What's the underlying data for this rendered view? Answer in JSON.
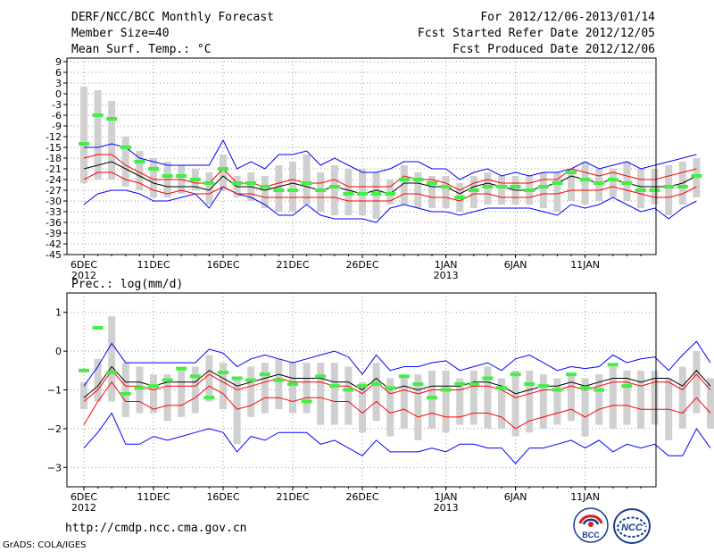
{
  "header": {
    "title": "DERF/NCC/BCC Monthly Forecast",
    "member_size": "Member Size=40",
    "variable_1": "Mean Surf. Temp.: °C",
    "period": "For 2012/12/06-2013/01/14",
    "started": "Fcst Started Refer Date 2012/12/05",
    "produced": "Fcst Produced Date 2012/12/06"
  },
  "footer": {
    "url": "http://cmdp.ncc.cma.gov.cn",
    "grads": "GrADS: COLA/IGES",
    "logo_left_text": "BCC",
    "logo_right_text": "NCC"
  },
  "chart_data": [
    {
      "type": "line",
      "title": "Mean Surf. Temp.: °C",
      "ylim": [
        -45,
        10
      ],
      "yticks": [
        9,
        6,
        3,
        0,
        -3,
        -6,
        -9,
        -12,
        -15,
        -18,
        -21,
        -24,
        -27,
        -30,
        -33,
        -36,
        -39,
        -42,
        -45
      ],
      "xticks": [
        {
          "day": 0,
          "label": "6DEC",
          "sub": "2012"
        },
        {
          "day": 5,
          "label": "11DEC",
          "sub": ""
        },
        {
          "day": 10,
          "label": "16DEC",
          "sub": ""
        },
        {
          "day": 15,
          "label": "21DEC",
          "sub": ""
        },
        {
          "day": 20,
          "label": "26DEC",
          "sub": ""
        },
        {
          "day": 26,
          "label": "1JAN",
          "sub": "2013"
        },
        {
          "day": 31,
          "label": "6JAN",
          "sub": ""
        },
        {
          "day": 36,
          "label": "11JAN",
          "sub": ""
        }
      ],
      "series": [
        {
          "name": "max",
          "color": "#0000ff",
          "values": [
            -15,
            -15,
            -14,
            -15,
            -18,
            -19,
            -20,
            -20,
            -20,
            -20,
            -13,
            -21,
            -19,
            -21,
            -17,
            -17,
            -16,
            -20,
            -18,
            -20,
            -22,
            -22,
            -21,
            -19,
            -19,
            -21,
            -21,
            -24,
            -22,
            -21,
            -23,
            -22,
            -23,
            -22,
            -22,
            -21,
            -19,
            -21,
            -20,
            -19,
            -21,
            -20,
            -19,
            -18,
            -17
          ]
        },
        {
          "name": "upper",
          "color": "#ff0000",
          "values": [
            -18,
            -17,
            -17,
            -20,
            -22,
            -24,
            -24,
            -24,
            -25,
            -25,
            -21,
            -25,
            -25,
            -26,
            -25,
            -24,
            -25,
            -25,
            -24,
            -26,
            -26,
            -26,
            -26,
            -23,
            -24,
            -24,
            -25,
            -27,
            -25,
            -24,
            -25,
            -25,
            -25,
            -24,
            -24,
            -21,
            -22,
            -23,
            -22,
            -23,
            -24,
            -24,
            -23,
            -22,
            -21
          ]
        },
        {
          "name": "mean",
          "color": "#000000",
          "values": [
            -21,
            -20,
            -19,
            -21,
            -23,
            -25,
            -26,
            -26,
            -26,
            -27,
            -23,
            -26,
            -26,
            -27,
            -26,
            -25,
            -26,
            -27,
            -26,
            -27,
            -28,
            -27,
            -28,
            -25,
            -25,
            -26,
            -26,
            -28,
            -26,
            -25,
            -26,
            -27,
            -27,
            -26,
            -25,
            -23,
            -24,
            -25,
            -24,
            -25,
            -26,
            -26,
            -26,
            -25,
            -23
          ]
        },
        {
          "name": "lower",
          "color": "#ff0000",
          "values": [
            -24,
            -22,
            -22,
            -24,
            -25,
            -27,
            -28,
            -27,
            -28,
            -28,
            -26,
            -28,
            -28,
            -29,
            -29,
            -29,
            -29,
            -29,
            -29,
            -30,
            -30,
            -30,
            -30,
            -28,
            -28,
            -29,
            -29,
            -30,
            -28,
            -28,
            -29,
            -29,
            -29,
            -28,
            -28,
            -27,
            -27,
            -27,
            -26,
            -27,
            -28,
            -29,
            -29,
            -28,
            -26
          ]
        },
        {
          "name": "min",
          "color": "#0000ff",
          "values": [
            -31,
            -28,
            -27,
            -27,
            -28,
            -30,
            -30,
            -29,
            -28,
            -32,
            -26,
            -28,
            -29,
            -31,
            -34,
            -34,
            -31,
            -34,
            -35,
            -35,
            -35,
            -36,
            -32,
            -31,
            -32,
            -33,
            -33,
            -34,
            -33,
            -32,
            -32,
            -32,
            -32,
            -33,
            -34,
            -31,
            -32,
            -31,
            -29,
            -31,
            -33,
            -32,
            -35,
            -32,
            -30
          ]
        },
        {
          "name": "range_top",
          "color": "#d0d0d0",
          "values": [
            2,
            1,
            -2,
            -12,
            -16,
            -18,
            -19,
            -20,
            -21,
            -22,
            -17,
            -23,
            -22,
            -23,
            -20,
            -19,
            -17,
            -22,
            -20,
            -21,
            -21,
            -22,
            -24,
            -20,
            -22,
            -23,
            -23,
            -25,
            -23,
            -22,
            -23,
            -23,
            -23,
            -22,
            -22,
            -21,
            -19,
            -21,
            -21,
            -19,
            -21,
            -21,
            -20,
            -19,
            -18
          ]
        },
        {
          "name": "range_bottom",
          "color": "#d0d0d0",
          "values": [
            -25,
            -24,
            -24,
            -26,
            -27,
            -29,
            -29,
            -28,
            -27,
            -31,
            -27,
            -29,
            -30,
            -32,
            -33,
            -33,
            -31,
            -33,
            -34,
            -34,
            -34,
            -35,
            -31,
            -31,
            -32,
            -32,
            -32,
            -33,
            -32,
            -31,
            -31,
            -31,
            -31,
            -32,
            -33,
            -30,
            -31,
            -30,
            -29,
            -30,
            -32,
            -31,
            -34,
            -31,
            -29
          ]
        },
        {
          "name": "observed_mark",
          "color": "#44ee44",
          "values": [
            -14,
            -6,
            -7,
            -15,
            -19,
            -21,
            -23,
            -23,
            -24,
            -25,
            -21,
            -25,
            -25,
            -26,
            -27,
            -27,
            -25,
            -27,
            -26,
            -28,
            -28,
            -28,
            -28,
            -24,
            -24,
            -25,
            -26,
            -29,
            -27,
            -26,
            -26,
            -26,
            -27,
            -26,
            -25,
            -22,
            -24,
            -25,
            -24,
            -25,
            -27,
            -27,
            -26,
            -26,
            -23
          ]
        }
      ]
    },
    {
      "type": "line",
      "title": "Prec.: log(mm/d)",
      "ylim": [
        -3.5,
        1.5
      ],
      "yticks": [
        1,
        0,
        -1,
        -2,
        -3
      ],
      "ytick_labels": [
        "1",
        "0",
        "−1",
        "−2",
        "−3"
      ],
      "xticks": [
        {
          "day": 0,
          "label": "6DEC",
          "sub": "2012"
        },
        {
          "day": 5,
          "label": "11DEC",
          "sub": ""
        },
        {
          "day": 10,
          "label": "16DEC",
          "sub": ""
        },
        {
          "day": 15,
          "label": "21DEC",
          "sub": ""
        },
        {
          "day": 20,
          "label": "26DEC",
          "sub": ""
        },
        {
          "day": 26,
          "label": "1JAN",
          "sub": "2013"
        },
        {
          "day": 31,
          "label": "6JAN",
          "sub": ""
        },
        {
          "day": 36,
          "label": "11JAN",
          "sub": ""
        }
      ],
      "series": [
        {
          "name": "max",
          "color": "#0000ff",
          "values": [
            -0.9,
            -0.4,
            0.2,
            -0.3,
            -0.3,
            -0.3,
            -0.3,
            -0.3,
            -0.3,
            0.05,
            -0.05,
            -0.4,
            -0.2,
            -0.1,
            -0.2,
            -0.3,
            -0.2,
            -0.1,
            0,
            -0.15,
            -0.6,
            -0.1,
            -0.5,
            -0.4,
            -0.4,
            -0.3,
            -0.25,
            -0.5,
            -0.4,
            -0.3,
            -0.5,
            -0.2,
            -0.1,
            -0.3,
            -0.5,
            -0.4,
            -0.45,
            -0.4,
            -0.1,
            -0.3,
            -0.2,
            -0.15,
            -0.5,
            -0.1,
            0.25,
            -0.3
          ]
        },
        {
          "name": "upper",
          "color": "#ff0000",
          "values": [
            -1.3,
            -1.0,
            -0.5,
            -0.9,
            -0.9,
            -1.0,
            -0.9,
            -0.9,
            -0.9,
            -0.6,
            -0.8,
            -1.0,
            -0.9,
            -0.8,
            -0.7,
            -0.8,
            -0.8,
            -0.8,
            -0.9,
            -0.9,
            -1.1,
            -0.8,
            -1.1,
            -1.0,
            -1.1,
            -1.0,
            -1.0,
            -1.0,
            -0.9,
            -0.9,
            -1.0,
            -1.2,
            -1.1,
            -1.0,
            -1.0,
            -0.9,
            -1.0,
            -0.9,
            -0.8,
            -0.8,
            -0.9,
            -0.8,
            -0.8,
            -1.0,
            -0.6,
            -1.0
          ]
        },
        {
          "name": "mean",
          "color": "#000000",
          "values": [
            -1.2,
            -0.9,
            -0.4,
            -0.8,
            -0.8,
            -0.9,
            -0.8,
            -0.8,
            -0.8,
            -0.5,
            -0.7,
            -0.9,
            -0.8,
            -0.7,
            -0.6,
            -0.7,
            -0.7,
            -0.7,
            -0.8,
            -0.8,
            -1.0,
            -0.7,
            -1.0,
            -0.9,
            -1.0,
            -0.9,
            -0.9,
            -0.9,
            -0.8,
            -0.8,
            -0.9,
            -1.1,
            -1.0,
            -0.9,
            -0.9,
            -0.8,
            -0.9,
            -0.8,
            -0.7,
            -0.7,
            -0.8,
            -0.7,
            -0.7,
            -0.9,
            -0.5,
            -0.9
          ]
        },
        {
          "name": "lower",
          "color": "#ff0000",
          "values": [
            -1.9,
            -1.3,
            -0.8,
            -1.3,
            -1.3,
            -1.5,
            -1.4,
            -1.4,
            -1.2,
            -0.9,
            -1.1,
            -1.5,
            -1.4,
            -1.2,
            -1.2,
            -1.3,
            -1.2,
            -1.2,
            -1.3,
            -1.3,
            -1.6,
            -1.3,
            -1.6,
            -1.5,
            -1.7,
            -1.6,
            -1.7,
            -1.7,
            -1.6,
            -1.6,
            -1.7,
            -2.0,
            -1.8,
            -1.7,
            -1.6,
            -1.5,
            -1.7,
            -1.5,
            -1.4,
            -1.4,
            -1.5,
            -1.5,
            -1.5,
            -1.6,
            -1.2,
            -1.6
          ]
        },
        {
          "name": "min",
          "color": "#0000ff",
          "values": [
            -2.5,
            -2.1,
            -1.6,
            -2.4,
            -2.4,
            -2.2,
            -2.3,
            -2.2,
            -2.1,
            -2.0,
            -2.1,
            -2.6,
            -2.2,
            -2.3,
            -2.1,
            -2.1,
            -2.1,
            -2.4,
            -2.3,
            -2.5,
            -2.7,
            -2.3,
            -2.6,
            -2.6,
            -2.6,
            -2.5,
            -2.6,
            -2.4,
            -2.4,
            -2.5,
            -2.5,
            -2.9,
            -2.5,
            -2.5,
            -2.4,
            -2.3,
            -2.5,
            -2.3,
            -2.6,
            -2.4,
            -2.5,
            -2.4,
            -2.7,
            -2.7,
            -2.0,
            -2.5
          ]
        },
        {
          "name": "range_top",
          "color": "#d0d0d0",
          "values": [
            -0.8,
            -0.2,
            0.9,
            -0.3,
            -0.4,
            -0.6,
            -0.6,
            -0.5,
            -0.4,
            -0.1,
            -0.3,
            -0.7,
            -0.4,
            -0.3,
            -0.2,
            -0.3,
            -0.3,
            -0.3,
            -0.3,
            -0.4,
            -0.8,
            -0.3,
            -0.7,
            -0.6,
            -0.6,
            -0.5,
            -0.5,
            -0.7,
            -0.5,
            -0.4,
            -0.7,
            -0.5,
            -0.5,
            -0.6,
            -0.7,
            -0.6,
            -0.7,
            -0.6,
            -0.4,
            -0.5,
            -0.5,
            -0.5,
            -0.7,
            -0.4,
            0,
            -0.7
          ]
        },
        {
          "name": "range_bottom",
          "color": "#d0d0d0",
          "values": [
            -1.5,
            -1.3,
            -1.3,
            -1.7,
            -1.6,
            -1.6,
            -1.8,
            -1.7,
            -1.6,
            -1.3,
            -1.5,
            -2.4,
            -1.7,
            -1.6,
            -1.5,
            -1.6,
            -1.6,
            -1.9,
            -1.9,
            -1.9,
            -2.1,
            -1.8,
            -2.2,
            -2.0,
            -2.3,
            -2.0,
            -2.1,
            -1.9,
            -1.9,
            -2.0,
            -2.0,
            -2.2,
            -2.1,
            -2.0,
            -1.9,
            -1.8,
            -2.2,
            -1.9,
            -2.0,
            -1.9,
            -2.0,
            -1.9,
            -2.3,
            -2.0,
            -1.6,
            -2.0
          ]
        },
        {
          "name": "observed_mark",
          "color": "#44ee44",
          "values": [
            -0.5,
            0.6,
            -0.55,
            -1.1,
            -0.95,
            -0.9,
            -0.75,
            -0.45,
            -0.65,
            -1.2,
            -0.55,
            -0.7,
            -0.75,
            -0.6,
            -0.75,
            -0.85,
            -1.3,
            -0.65,
            -0.9,
            -1.0,
            -0.9,
            -0.85,
            -0.95,
            -0.65,
            -0.85,
            -1.2,
            -1.0,
            -0.85,
            -0.85,
            -0.7,
            -0.95,
            -0.6,
            -0.85,
            -0.9,
            -1.0,
            -0.6,
            -0.95,
            -1.0,
            -0.35,
            -0.9
          ]
        }
      ]
    }
  ]
}
